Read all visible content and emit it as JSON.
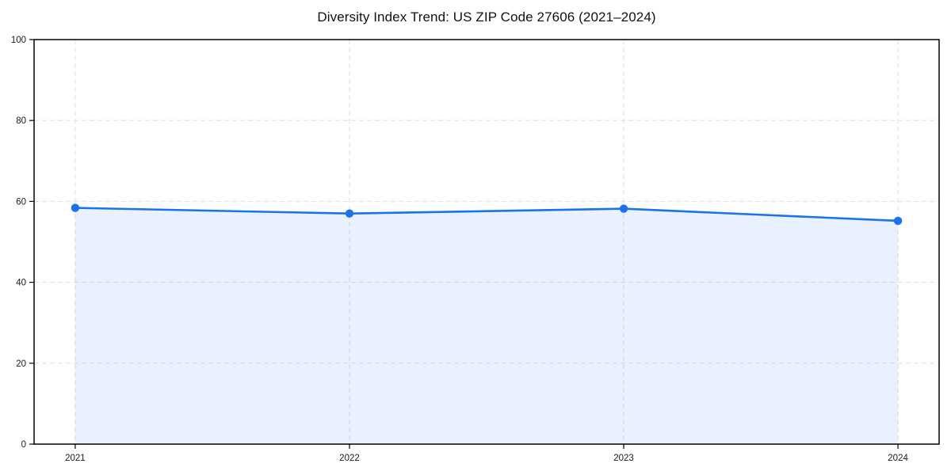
{
  "chart_data": {
    "type": "line",
    "title": "Diversity Index Trend: US ZIP Code 27606 (2021–2024)",
    "x": [
      "2021",
      "2022",
      "2023",
      "2024"
    ],
    "series": [
      {
        "name": "Diversity Index",
        "values": [
          58.4,
          57.0,
          58.2,
          55.2
        ]
      }
    ],
    "xlabel": "",
    "ylabel": "",
    "ylim": [
      0,
      100
    ],
    "yticks": [
      0,
      20,
      40,
      60,
      80,
      100
    ],
    "grid": true,
    "grid_style": "dashed",
    "legend_position": "none",
    "colors": {
      "line": "#1a73e8",
      "marker": "#1a73e8",
      "area_fill": "rgba(26,115,232,0.10)",
      "grid": "#dedede",
      "axis": "#000000",
      "tick_label": "#1a1a1a",
      "background": "#ffffff"
    },
    "style": {
      "marker_shape": "circle",
      "area_to_zero": true,
      "x_margin_frac": 0.05
    }
  }
}
